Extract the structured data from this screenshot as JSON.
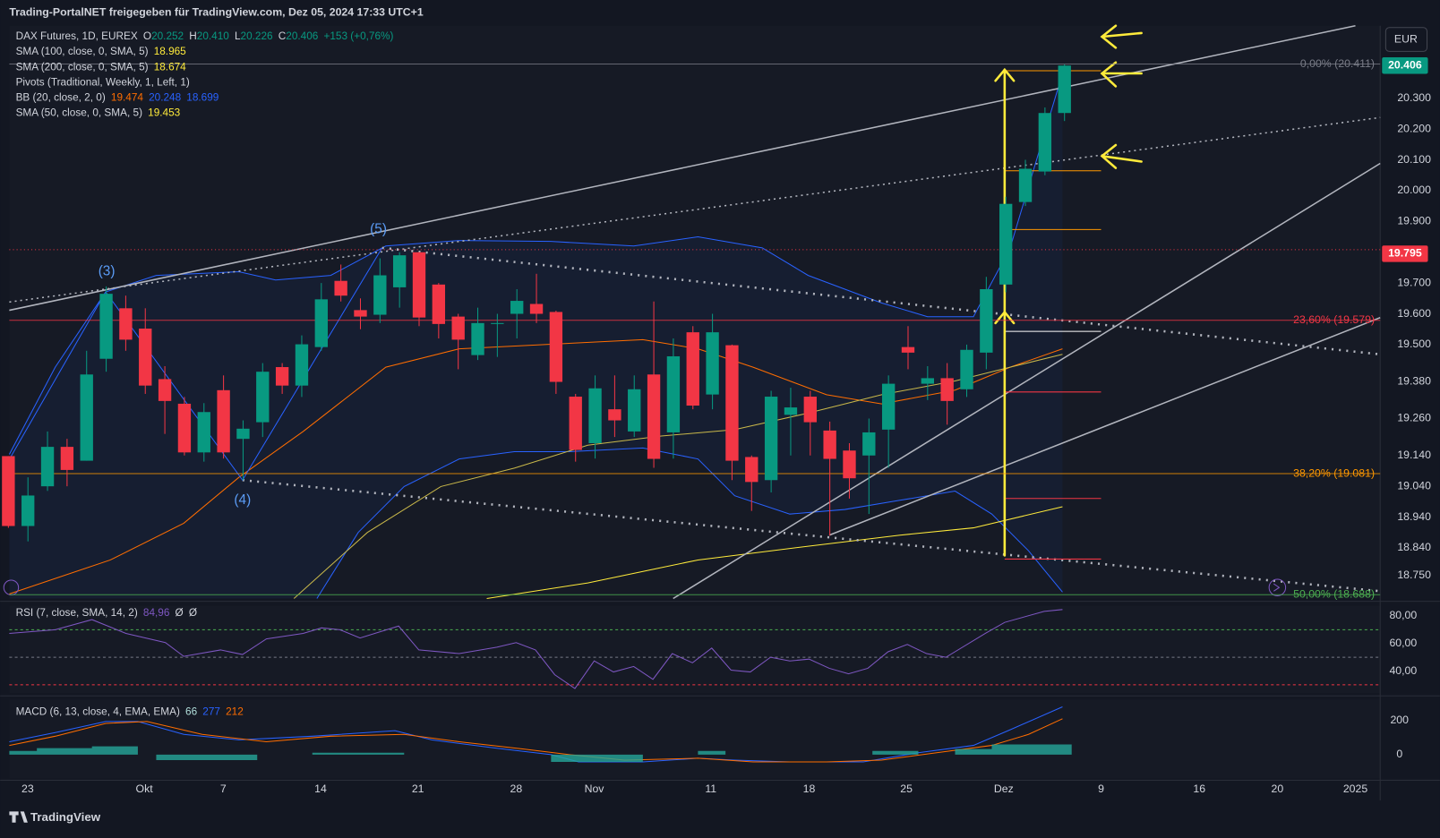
{
  "header": {
    "text": "Trading-PortalNET freigegeben für TradingView.com, Dez 05, 2024 17:33 UTC+1"
  },
  "legend": [
    [
      {
        "text": "DAX Futures, 1D, EUREX",
        "color": "#d1d4dc"
      },
      {
        "text": "O",
        "color": "#d1d4dc"
      },
      {
        "text": "20.252",
        "color": "#089981"
      },
      {
        "text": "H",
        "color": "#d1d4dc"
      },
      {
        "text": "20.410",
        "color": "#089981"
      },
      {
        "text": "L",
        "color": "#d1d4dc"
      },
      {
        "text": "20.226",
        "color": "#089981"
      },
      {
        "text": "C",
        "color": "#d1d4dc"
      },
      {
        "text": "20.406",
        "color": "#089981"
      },
      {
        "text": "+153 (+0,76%)",
        "color": "#089981"
      }
    ],
    [
      {
        "text": "SMA (100, close, 0, SMA, 5)",
        "color": "#d1d4dc"
      },
      {
        "text": "18.965",
        "color": "#ffeb3b"
      }
    ],
    [
      {
        "text": "SMA (200, close, 0, SMA, 5)",
        "color": "#d1d4dc"
      },
      {
        "text": "18.674",
        "color": "#ffeb3b"
      }
    ],
    [
      {
        "text": "Pivots (Traditional, Weekly, 1, Left, 1)",
        "color": "#d1d4dc"
      }
    ],
    [
      {
        "text": "BB (20, close, 2, 0)",
        "color": "#d1d4dc"
      },
      {
        "text": "19.474",
        "color": "#ff6d00"
      },
      {
        "text": "20.248",
        "color": "#2962ff"
      },
      {
        "text": "18.699",
        "color": "#2962ff"
      }
    ],
    [
      {
        "text": "SMA (50, close, 0, SMA, 5)",
        "color": "#d1d4dc"
      },
      {
        "text": "19.453",
        "color": "#ffeb3b"
      }
    ]
  ],
  "currency": "EUR",
  "price_axis": [
    {
      "value": 20300,
      "label": "20.300"
    },
    {
      "value": 20200,
      "label": "20.200"
    },
    {
      "value": 20100,
      "label": "20.100"
    },
    {
      "value": 20000,
      "label": "20.000"
    },
    {
      "value": 19900,
      "label": "19.900"
    },
    {
      "value": 19700,
      "label": "19.700"
    },
    {
      "value": 19600,
      "label": "19.600"
    },
    {
      "value": 19500,
      "label": "19.500"
    },
    {
      "value": 19380,
      "label": "19.380"
    },
    {
      "value": 19260,
      "label": "19.260"
    },
    {
      "value": 19140,
      "label": "19.140"
    },
    {
      "value": 19040,
      "label": "19.040"
    },
    {
      "value": 18940,
      "label": "18.940"
    },
    {
      "value": 18840,
      "label": "18.840"
    },
    {
      "value": 18750,
      "label": "18.750"
    }
  ],
  "badges": [
    {
      "value": 20406,
      "label": "20.406",
      "color": "#089981"
    },
    {
      "value": 19795,
      "label": "19.795",
      "color": "#f23645"
    }
  ],
  "fib": [
    {
      "label": "0,00% (20.411)",
      "value": 20411,
      "color": "#787b86"
    },
    {
      "label": "23,60% (19.579)",
      "value": 19579,
      "color": "#f23645"
    },
    {
      "label": "38,20% (19.081)",
      "value": 19081,
      "color": "#ff9800"
    },
    {
      "label": "50,00% (18.688)",
      "value": 18688,
      "color": "#4caf50"
    }
  ],
  "waves": [
    {
      "label": "(3)"
    },
    {
      "label": "(4)"
    },
    {
      "label": "(5)"
    }
  ],
  "time_axis": [
    "23",
    "Okt",
    "7",
    "14",
    "21",
    "28",
    "Nov",
    "11",
    "18",
    "25",
    "Dez",
    "9",
    "16",
    "20",
    "2025"
  ],
  "candles": [
    {
      "o": 19138,
      "h": 19138,
      "l": 18905,
      "c": 18911
    },
    {
      "o": 18911,
      "h": 19069,
      "l": 18861,
      "c": 19010
    },
    {
      "o": 19040,
      "h": 19218,
      "l": 19025,
      "c": 19168
    },
    {
      "o": 19168,
      "h": 19194,
      "l": 19040,
      "c": 19093
    },
    {
      "o": 19123,
      "h": 19480,
      "l": 19123,
      "c": 19403
    },
    {
      "o": 19454,
      "h": 19689,
      "l": 19412,
      "c": 19665
    },
    {
      "o": 19618,
      "h": 19659,
      "l": 19480,
      "c": 19516
    },
    {
      "o": 19552,
      "h": 19618,
      "l": 19340,
      "c": 19367
    },
    {
      "o": 19388,
      "h": 19430,
      "l": 19210,
      "c": 19317
    },
    {
      "o": 19308,
      "h": 19330,
      "l": 19140,
      "c": 19150
    },
    {
      "o": 19150,
      "h": 19310,
      "l": 19120,
      "c": 19281
    },
    {
      "o": 19352,
      "h": 19400,
      "l": 19130,
      "c": 19150
    },
    {
      "o": 19194,
      "h": 19254,
      "l": 19060,
      "c": 19227
    },
    {
      "o": 19248,
      "h": 19440,
      "l": 19200,
      "c": 19412
    },
    {
      "o": 19427,
      "h": 19440,
      "l": 19340,
      "c": 19367
    },
    {
      "o": 19367,
      "h": 19530,
      "l": 19330,
      "c": 19501
    },
    {
      "o": 19492,
      "h": 19700,
      "l": 19480,
      "c": 19647
    },
    {
      "o": 19707,
      "h": 19760,
      "l": 19640,
      "c": 19659
    },
    {
      "o": 19612,
      "h": 19650,
      "l": 19550,
      "c": 19591
    },
    {
      "o": 19597,
      "h": 19780,
      "l": 19570,
      "c": 19725
    },
    {
      "o": 19686,
      "h": 19800,
      "l": 19620,
      "c": 19790
    },
    {
      "o": 19800,
      "h": 19800,
      "l": 19560,
      "c": 19588
    },
    {
      "o": 19695,
      "h": 19700,
      "l": 19520,
      "c": 19567
    },
    {
      "o": 19591,
      "h": 19600,
      "l": 19420,
      "c": 19516
    },
    {
      "o": 19466,
      "h": 19620,
      "l": 19450,
      "c": 19570
    },
    {
      "o": 19567,
      "h": 19600,
      "l": 19460,
      "c": 19570
    },
    {
      "o": 19600,
      "h": 19680,
      "l": 19520,
      "c": 19642
    },
    {
      "o": 19632,
      "h": 19730,
      "l": 19570,
      "c": 19600
    },
    {
      "o": 19606,
      "h": 19610,
      "l": 19340,
      "c": 19379
    },
    {
      "o": 19331,
      "h": 19340,
      "l": 19120,
      "c": 19158
    },
    {
      "o": 19180,
      "h": 19400,
      "l": 19130,
      "c": 19358
    },
    {
      "o": 19290,
      "h": 19400,
      "l": 19200,
      "c": 19254
    },
    {
      "o": 19218,
      "h": 19400,
      "l": 19200,
      "c": 19355
    },
    {
      "o": 19403,
      "h": 19640,
      "l": 19100,
      "c": 19129
    },
    {
      "o": 19215,
      "h": 19520,
      "l": 19130,
      "c": 19462
    },
    {
      "o": 19540,
      "h": 19560,
      "l": 19290,
      "c": 19302
    },
    {
      "o": 19338,
      "h": 19600,
      "l": 19290,
      "c": 19540
    },
    {
      "o": 19498,
      "h": 19500,
      "l": 19060,
      "c": 19123
    },
    {
      "o": 19135,
      "h": 19140,
      "l": 18960,
      "c": 19054
    },
    {
      "o": 19060,
      "h": 19350,
      "l": 19020,
      "c": 19331
    },
    {
      "o": 19272,
      "h": 19360,
      "l": 19140,
      "c": 19296
    },
    {
      "o": 19331,
      "h": 19350,
      "l": 19140,
      "c": 19248
    },
    {
      "o": 19221,
      "h": 19250,
      "l": 18880,
      "c": 19129
    },
    {
      "o": 19156,
      "h": 19180,
      "l": 19000,
      "c": 19066
    },
    {
      "o": 19140,
      "h": 19260,
      "l": 18950,
      "c": 19215
    },
    {
      "o": 19224,
      "h": 19400,
      "l": 19100,
      "c": 19373
    },
    {
      "o": 19492,
      "h": 19560,
      "l": 19420,
      "c": 19474
    },
    {
      "o": 19373,
      "h": 19430,
      "l": 19320,
      "c": 19391
    },
    {
      "o": 19391,
      "h": 19440,
      "l": 19240,
      "c": 19317
    },
    {
      "o": 19355,
      "h": 19500,
      "l": 19330,
      "c": 19483
    },
    {
      "o": 19474,
      "h": 19720,
      "l": 19420,
      "c": 19680
    },
    {
      "o": 19695,
      "h": 19980,
      "l": 19670,
      "c": 19957
    },
    {
      "o": 19963,
      "h": 20100,
      "l": 19950,
      "c": 20071
    },
    {
      "o": 20062,
      "h": 20270,
      "l": 20050,
      "c": 20252
    },
    {
      "o": 20252,
      "h": 20410,
      "l": 20226,
      "c": 20406
    }
  ],
  "rsi": {
    "legend": [
      {
        "text": "RSI (7, close, SMA, 14, 2)",
        "color": "#d1d4dc"
      },
      {
        "text": "84,96",
        "color": "#7e57c2"
      },
      {
        "text": "Ø",
        "color": "#d1d4dc"
      },
      {
        "text": "Ø",
        "color": "#d1d4dc"
      }
    ],
    "ticks": [
      {
        "value": 80,
        "label": "80,00"
      },
      {
        "value": 60,
        "label": "60,00"
      },
      {
        "value": 40,
        "label": "40,00"
      }
    ]
  },
  "macd": {
    "legend": [
      {
        "text": "MACD (6, 13, close, 4, EMA, EMA)",
        "color": "#d1d4dc"
      },
      {
        "text": "66",
        "color": "#b2dfdb"
      },
      {
        "text": "277",
        "color": "#2962ff"
      },
      {
        "text": "212",
        "color": "#ff6d00"
      }
    ],
    "ticks": [
      200,
      0
    ]
  },
  "footer": {
    "brand": "TradingView"
  }
}
